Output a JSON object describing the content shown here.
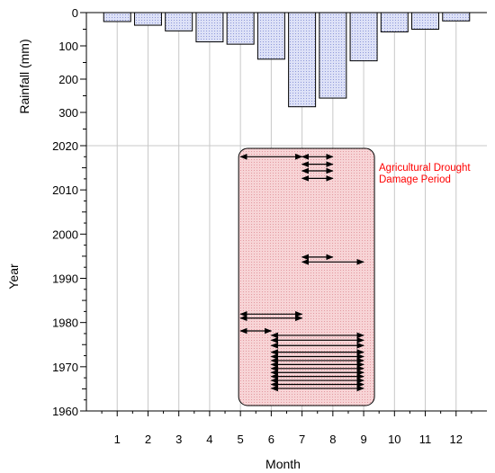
{
  "chart_data": {
    "type": "bar+timeline",
    "x": {
      "label": "Month",
      "ticks": [
        "1",
        "2",
        "3",
        "4",
        "5",
        "6",
        "7",
        "8",
        "9",
        "10",
        "11",
        "12"
      ],
      "range": [
        0,
        13
      ]
    },
    "rainfall": {
      "label": "Rainfall (mm)",
      "axis_ticks": [
        "0",
        "100",
        "200",
        "300"
      ],
      "range": [
        0,
        400
      ],
      "inverted": true,
      "months": [
        1,
        2,
        3,
        4,
        5,
        6,
        7,
        8,
        9,
        10,
        11,
        12
      ],
      "values": [
        27,
        38,
        55,
        88,
        95,
        140,
        283,
        257,
        145,
        58,
        50,
        25
      ],
      "bar_fill": "#d7dcf6",
      "bar_stroke": "#000000"
    },
    "year": {
      "label": "Year",
      "axis_ticks": [
        "1960",
        "1970",
        "1980",
        "1990",
        "2000",
        "2010",
        "2020"
      ],
      "range": [
        1960,
        2020
      ]
    },
    "drought_events": [
      {
        "year": 2017.5,
        "start_month": 5,
        "end_month": 7
      },
      {
        "year": 2017.5,
        "start_month": 7,
        "end_month": 8
      },
      {
        "year": 2015.8,
        "start_month": 7,
        "end_month": 8
      },
      {
        "year": 2014.3,
        "start_month": 7,
        "end_month": 8
      },
      {
        "year": 2012.6,
        "start_month": 7,
        "end_month": 8
      },
      {
        "year": 1994.8,
        "start_month": 7,
        "end_month": 8
      },
      {
        "year": 1993.7,
        "start_month": 7,
        "end_month": 9
      },
      {
        "year": 1981.9,
        "start_month": 5,
        "end_month": 7
      },
      {
        "year": 1981.0,
        "start_month": 5,
        "end_month": 7
      },
      {
        "year": 1978.1,
        "start_month": 5,
        "end_month": 6
      },
      {
        "year": 1977.1,
        "start_month": 6,
        "end_month": 9
      },
      {
        "year": 1976.0,
        "start_month": 6,
        "end_month": 9
      },
      {
        "year": 1974.8,
        "start_month": 6,
        "end_month": 9
      },
      {
        "year": 1973.3,
        "start_month": 6,
        "end_month": 9
      },
      {
        "year": 1972.3,
        "start_month": 6,
        "end_month": 9
      },
      {
        "year": 1971.4,
        "start_month": 6,
        "end_month": 9
      },
      {
        "year": 1970.5,
        "start_month": 6,
        "end_month": 9
      },
      {
        "year": 1969.6,
        "start_month": 6,
        "end_month": 9
      },
      {
        "year": 1968.7,
        "start_month": 6,
        "end_month": 9
      },
      {
        "year": 1967.8,
        "start_month": 6,
        "end_month": 9
      },
      {
        "year": 1966.9,
        "start_month": 6,
        "end_month": 9
      },
      {
        "year": 1966.0,
        "start_month": 6,
        "end_month": 9
      },
      {
        "year": 1965.1,
        "start_month": 6,
        "end_month": 9
      }
    ],
    "damage_period": {
      "label": "Agricultural Drought Damage Period",
      "label_lines": [
        "Agricultural Drought",
        "Damage Period"
      ],
      "start_month": 5,
      "end_month": 9,
      "fill": "#f7d4d6",
      "label_color": "#ff0000"
    },
    "grid": true
  }
}
